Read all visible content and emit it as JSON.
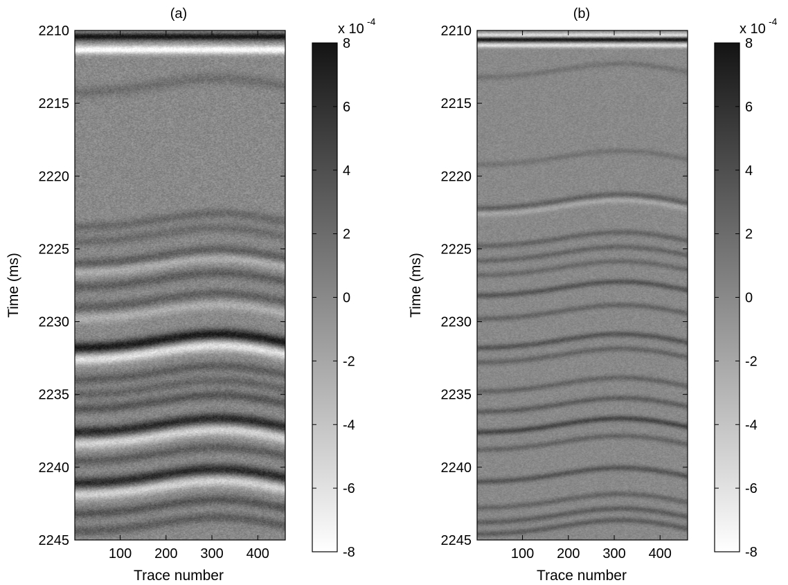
{
  "chart_data": [
    {
      "type": "heatmap",
      "title": "(a)",
      "xlabel": "Trace number",
      "ylabel": "Time (ms)",
      "xlim": [
        1,
        460
      ],
      "ylim": [
        2210,
        2245
      ],
      "y_reversed": true,
      "xticks": [
        100,
        200,
        300,
        400
      ],
      "yticks": [
        2210,
        2215,
        2220,
        2225,
        2230,
        2235,
        2240,
        2245
      ],
      "colorbar": {
        "range": [
          -8,
          8
        ],
        "ticks": [
          8,
          6,
          4,
          2,
          0,
          -2,
          -4,
          -6,
          -8
        ],
        "exponent_label": "x 10",
        "exponent": "-4",
        "colormap": "gray-reversed"
      },
      "events": [
        {
          "time": 2210.4,
          "amp": 8,
          "width": 0.18
        },
        {
          "time": 2211.3,
          "amp": -8,
          "width": 0.22
        },
        {
          "time": 2214.0,
          "amp": 1.8,
          "width": 0.3
        },
        {
          "time": 2223.3,
          "amp": 2.2,
          "width": 0.25
        },
        {
          "time": 2224.3,
          "amp": 2.0,
          "width": 0.25
        },
        {
          "time": 2225.8,
          "amp": 3.0,
          "width": 0.25
        },
        {
          "time": 2226.4,
          "amp": -2.5,
          "width": 0.25
        },
        {
          "time": 2227.4,
          "amp": 3.0,
          "width": 0.25
        },
        {
          "time": 2228.8,
          "amp": 2.8,
          "width": 0.25
        },
        {
          "time": 2229.6,
          "amp": -2.5,
          "width": 0.25
        },
        {
          "time": 2231.6,
          "amp": 7.5,
          "width": 0.28
        },
        {
          "time": 2232.4,
          "amp": -6.0,
          "width": 0.28
        },
        {
          "time": 2233.8,
          "amp": 3.0,
          "width": 0.25
        },
        {
          "time": 2234.8,
          "amp": 2.5,
          "width": 0.25
        },
        {
          "time": 2235.8,
          "amp": 3.5,
          "width": 0.25
        },
        {
          "time": 2237.4,
          "amp": 6.5,
          "width": 0.28
        },
        {
          "time": 2238.2,
          "amp": -5.0,
          "width": 0.28
        },
        {
          "time": 2239.4,
          "amp": 3.0,
          "width": 0.25
        },
        {
          "time": 2240.9,
          "amp": 6.5,
          "width": 0.28
        },
        {
          "time": 2241.7,
          "amp": -5.0,
          "width": 0.28
        },
        {
          "time": 2243.0,
          "amp": 3.5,
          "width": 0.25
        },
        {
          "time": 2244.2,
          "amp": 3.0,
          "width": 0.25
        }
      ]
    },
    {
      "type": "heatmap",
      "title": "(b)",
      "xlabel": "Trace number",
      "ylabel": "Time (ms)",
      "xlim": [
        1,
        460
      ],
      "ylim": [
        2210,
        2245
      ],
      "y_reversed": true,
      "xticks": [
        100,
        200,
        300,
        400
      ],
      "yticks": [
        2210,
        2215,
        2220,
        2225,
        2230,
        2235,
        2240,
        2245
      ],
      "colorbar": {
        "range": [
          -8,
          8
        ],
        "ticks": [
          8,
          6,
          4,
          2,
          0,
          -2,
          -4,
          -6,
          -8
        ],
        "exponent_label": "x 10",
        "exponent": "-4",
        "colormap": "gray-reversed"
      },
      "events": [
        {
          "time": 2210.3,
          "amp": -6,
          "width": 0.12
        },
        {
          "time": 2210.6,
          "amp": 8,
          "width": 0.12
        },
        {
          "time": 2211.0,
          "amp": -6,
          "width": 0.12
        },
        {
          "time": 2213.0,
          "amp": 1.5,
          "width": 0.15
        },
        {
          "time": 2219.0,
          "amp": 1.5,
          "width": 0.15
        },
        {
          "time": 2222.0,
          "amp": 2.8,
          "width": 0.15
        },
        {
          "time": 2222.4,
          "amp": -2.0,
          "width": 0.15
        },
        {
          "time": 2224.6,
          "amp": 2.5,
          "width": 0.15
        },
        {
          "time": 2225.6,
          "amp": 2.5,
          "width": 0.15
        },
        {
          "time": 2226.6,
          "amp": 2.2,
          "width": 0.15
        },
        {
          "time": 2228.0,
          "amp": 3.5,
          "width": 0.15
        },
        {
          "time": 2229.6,
          "amp": 2.5,
          "width": 0.15
        },
        {
          "time": 2231.6,
          "amp": 3.5,
          "width": 0.15
        },
        {
          "time": 2232.6,
          "amp": 2.5,
          "width": 0.15
        },
        {
          "time": 2234.6,
          "amp": 2.5,
          "width": 0.15
        },
        {
          "time": 2236.0,
          "amp": 3.0,
          "width": 0.15
        },
        {
          "time": 2237.4,
          "amp": 4.5,
          "width": 0.15
        },
        {
          "time": 2238.6,
          "amp": 2.5,
          "width": 0.15
        },
        {
          "time": 2240.8,
          "amp": 3.5,
          "width": 0.15
        },
        {
          "time": 2242.6,
          "amp": 2.5,
          "width": 0.15
        },
        {
          "time": 2243.6,
          "amp": 3.0,
          "width": 0.15
        },
        {
          "time": 2244.4,
          "amp": 3.0,
          "width": 0.15
        }
      ]
    }
  ]
}
